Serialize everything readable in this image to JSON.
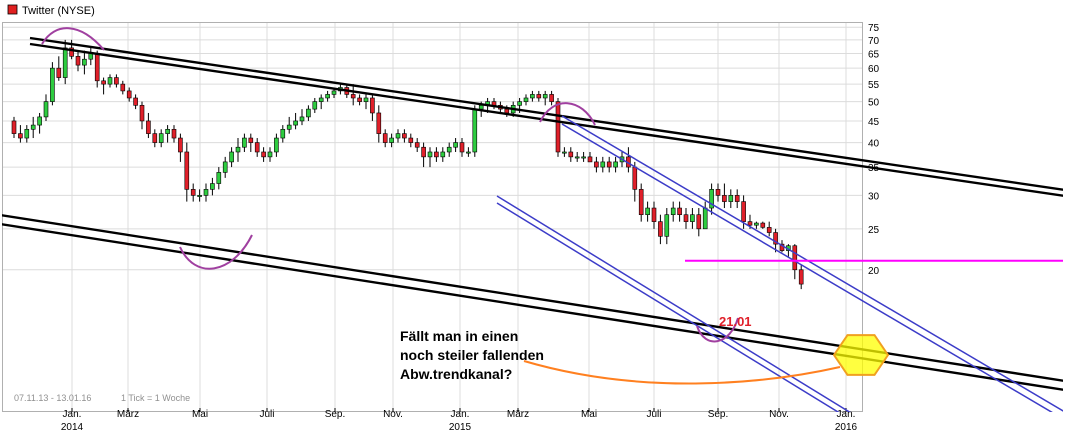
{
  "chart_data": {
    "type": "candlestick",
    "title": "Twitter (NYSE)",
    "date_range": "07.11.13 - 13.01.16",
    "interval": "1 Tick = 1 Woche",
    "ylim": [
      10,
      78
    ],
    "y_scale": "log",
    "y_ticks": [
      20,
      25,
      30,
      35,
      40,
      45,
      50,
      55,
      60,
      65,
      70,
      75
    ],
    "x_tick_labels": [
      {
        "label": "Jan.",
        "year": "2014"
      },
      {
        "label": "März",
        "year": ""
      },
      {
        "label": "Mai",
        "year": ""
      },
      {
        "label": "Juli",
        "year": ""
      },
      {
        "label": "Sep.",
        "year": ""
      },
      {
        "label": "Nov.",
        "year": ""
      },
      {
        "label": "Jan.",
        "year": "2015"
      },
      {
        "label": "März",
        "year": ""
      },
      {
        "label": "Mai",
        "year": ""
      },
      {
        "label": "Juli",
        "year": ""
      },
      {
        "label": "Sep.",
        "year": ""
      },
      {
        "label": "Nov.",
        "year": ""
      },
      {
        "label": "Jan.",
        "year": "2016"
      }
    ],
    "series": [
      {
        "values": [
          [
            45,
            46,
            41,
            42
          ],
          [
            42,
            44,
            40,
            41
          ],
          [
            41,
            44,
            40,
            43
          ],
          [
            43,
            46,
            41,
            44
          ],
          [
            44,
            47,
            42,
            46
          ],
          [
            46,
            52,
            45,
            50
          ],
          [
            50,
            62,
            49,
            60
          ],
          [
            60,
            64,
            56,
            57
          ],
          [
            57,
            70,
            55,
            67
          ],
          [
            67,
            70,
            63,
            64
          ],
          [
            64,
            66,
            59,
            61
          ],
          [
            61,
            66,
            58,
            63
          ],
          [
            63,
            67,
            61,
            65
          ],
          [
            65,
            66,
            54,
            56
          ],
          [
            56,
            57,
            52,
            55
          ],
          [
            55,
            58,
            54,
            57
          ],
          [
            57,
            58,
            54,
            55
          ],
          [
            55,
            56,
            52,
            53
          ],
          [
            53,
            54,
            50,
            51
          ],
          [
            51,
            52,
            48,
            49
          ],
          [
            49,
            50,
            43,
            45
          ],
          [
            45,
            47,
            41,
            42
          ],
          [
            42,
            43,
            39,
            40
          ],
          [
            40,
            43,
            39,
            42
          ],
          [
            42,
            44,
            40,
            43
          ],
          [
            43,
            44,
            40,
            41
          ],
          [
            41,
            42,
            36,
            38
          ],
          [
            38,
            40,
            29,
            31
          ],
          [
            31,
            32,
            29,
            30
          ],
          [
            30,
            31,
            29,
            30
          ],
          [
            30,
            32,
            29,
            31
          ],
          [
            31,
            33,
            30,
            32
          ],
          [
            32,
            35,
            31,
            34
          ],
          [
            34,
            37,
            33,
            36
          ],
          [
            36,
            39,
            35,
            38
          ],
          [
            38,
            41,
            36,
            39
          ],
          [
            39,
            42,
            38,
            41
          ],
          [
            41,
            42,
            38,
            40
          ],
          [
            40,
            41,
            37,
            38
          ],
          [
            38,
            39,
            36,
            37
          ],
          [
            37,
            39,
            36,
            38
          ],
          [
            38,
            42,
            37,
            41
          ],
          [
            41,
            44,
            40,
            43
          ],
          [
            43,
            46,
            42,
            44
          ],
          [
            44,
            47,
            43,
            45
          ],
          [
            45,
            48,
            44,
            46
          ],
          [
            46,
            49,
            45,
            48
          ],
          [
            48,
            51,
            47,
            50
          ],
          [
            50,
            52,
            48,
            51
          ],
          [
            51,
            53,
            50,
            52
          ],
          [
            52,
            54,
            51,
            53
          ],
          [
            53,
            55,
            52,
            54
          ],
          [
            54,
            55,
            51,
            52
          ],
          [
            52,
            55,
            49,
            51
          ],
          [
            51,
            52,
            49,
            50
          ],
          [
            50,
            52,
            48,
            51
          ],
          [
            51,
            52,
            45,
            47
          ],
          [
            47,
            49,
            40,
            42
          ],
          [
            42,
            43,
            39,
            40
          ],
          [
            40,
            42,
            39,
            41
          ],
          [
            41,
            43,
            40,
            42
          ],
          [
            42,
            43,
            40,
            41
          ],
          [
            41,
            42,
            39,
            40
          ],
          [
            40,
            41,
            38,
            39
          ],
          [
            39,
            40,
            35,
            37
          ],
          [
            37,
            39,
            35,
            38
          ],
          [
            38,
            39,
            36,
            37
          ],
          [
            37,
            39,
            36,
            38
          ],
          [
            38,
            40,
            37,
            39
          ],
          [
            39,
            41,
            38,
            40
          ],
          [
            40,
            41,
            37,
            38
          ],
          [
            38,
            39,
            37,
            38
          ],
          [
            38,
            49,
            37,
            48
          ],
          [
            48,
            50,
            46,
            49
          ],
          [
            49,
            51,
            47,
            50
          ],
          [
            50,
            51,
            48,
            49
          ],
          [
            49,
            50,
            47,
            48
          ],
          [
            48,
            49,
            46,
            47
          ],
          [
            47,
            50,
            46,
            49
          ],
          [
            49,
            51,
            47,
            50
          ],
          [
            50,
            52,
            49,
            51
          ],
          [
            51,
            53,
            50,
            52
          ],
          [
            52,
            53,
            50,
            51
          ],
          [
            51,
            53,
            49,
            52
          ],
          [
            52,
            53,
            49,
            50
          ],
          [
            50,
            51,
            37,
            38
          ],
          [
            38,
            39,
            37,
            38
          ],
          [
            38,
            39,
            36,
            37
          ],
          [
            37,
            38,
            36,
            37
          ],
          [
            37,
            38,
            36,
            37
          ],
          [
            37,
            38,
            36,
            36
          ],
          [
            36,
            37,
            34,
            35
          ],
          [
            35,
            37,
            34,
            36
          ],
          [
            36,
            37,
            34,
            35
          ],
          [
            35,
            37,
            34,
            36
          ],
          [
            36,
            38,
            35,
            37
          ],
          [
            37,
            39,
            34,
            35
          ],
          [
            35,
            36,
            29,
            31
          ],
          [
            31,
            32,
            26,
            27
          ],
          [
            27,
            29,
            26,
            28
          ],
          [
            28,
            29,
            25,
            26
          ],
          [
            26,
            27,
            23,
            24
          ],
          [
            24,
            28,
            23,
            27
          ],
          [
            27,
            29,
            26,
            28
          ],
          [
            28,
            29,
            26,
            27
          ],
          [
            27,
            28,
            25,
            26
          ],
          [
            26,
            28,
            25,
            27
          ],
          [
            27,
            28,
            24,
            25
          ],
          [
            25,
            29,
            25,
            28
          ],
          [
            28,
            32,
            27,
            31
          ],
          [
            31,
            32,
            29,
            30
          ],
          [
            30,
            32,
            28,
            29
          ],
          [
            29,
            31,
            28,
            30
          ],
          [
            30,
            31,
            28,
            29
          ],
          [
            29,
            30,
            25,
            26
          ],
          [
            26,
            27,
            25,
            25.5
          ],
          [
            25.5,
            26,
            25,
            25.8
          ],
          [
            25.8,
            26,
            25,
            25.2
          ],
          [
            25.2,
            26,
            24,
            24.5
          ],
          [
            24.5,
            25,
            22,
            23
          ],
          [
            23,
            23.5,
            22,
            22.2
          ],
          [
            22.2,
            23,
            21.5,
            22.8
          ],
          [
            22.8,
            23,
            19,
            20
          ],
          [
            20,
            20.5,
            18,
            18.5
          ]
        ]
      }
    ],
    "annotations": {
      "level_label": "21.01",
      "level_value": 21.01,
      "text_lines": [
        "Fällt man in einen",
        "noch steiler fallenden",
        "Abw.trendkanal?"
      ]
    },
    "colors": {
      "up": "#2ecc40",
      "down": "#e0202a",
      "wick": "#000000",
      "trend": "#000000",
      "channel": "#3c3cc8",
      "arc": "#a040a0",
      "level": "#ff00ff",
      "arrow": "#ff8020",
      "highlight_fill": "#ffff00",
      "highlight_stroke": "#f0a020",
      "grid": "#dcdcdc",
      "title_icon": "#e02020"
    },
    "grid": true,
    "legend": "top-left"
  }
}
